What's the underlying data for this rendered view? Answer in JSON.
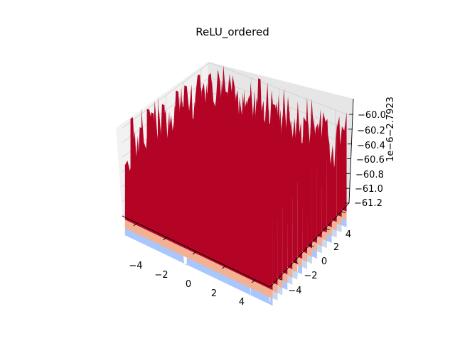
{
  "chart_data": {
    "type": "surface",
    "title": "ReLU_ordered",
    "xlabel": "",
    "ylabel": "",
    "zlabel": "",
    "x_ticks": [
      "−4",
      "−2",
      "0",
      "2",
      "4"
    ],
    "y_ticks": [
      "−4",
      "−2",
      "0",
      "2",
      "4"
    ],
    "z_ticks": [
      "−60.0",
      "−60.2",
      "−60.4",
      "−60.6",
      "−60.8",
      "−61.0",
      "−61.2"
    ],
    "z_offset_text": "1e−6−2.7923",
    "xlim": [
      -5,
      5
    ],
    "ylim": [
      -5,
      5
    ],
    "zlim": [
      -61.3,
      -59.9
    ],
    "colormap": "coolwarm",
    "surface_colors": {
      "high": "#b40426",
      "mid_high": "#f4b093",
      "mid_low": "#c7d7f0",
      "low": "#aac7fd"
    },
    "grid": true
  }
}
